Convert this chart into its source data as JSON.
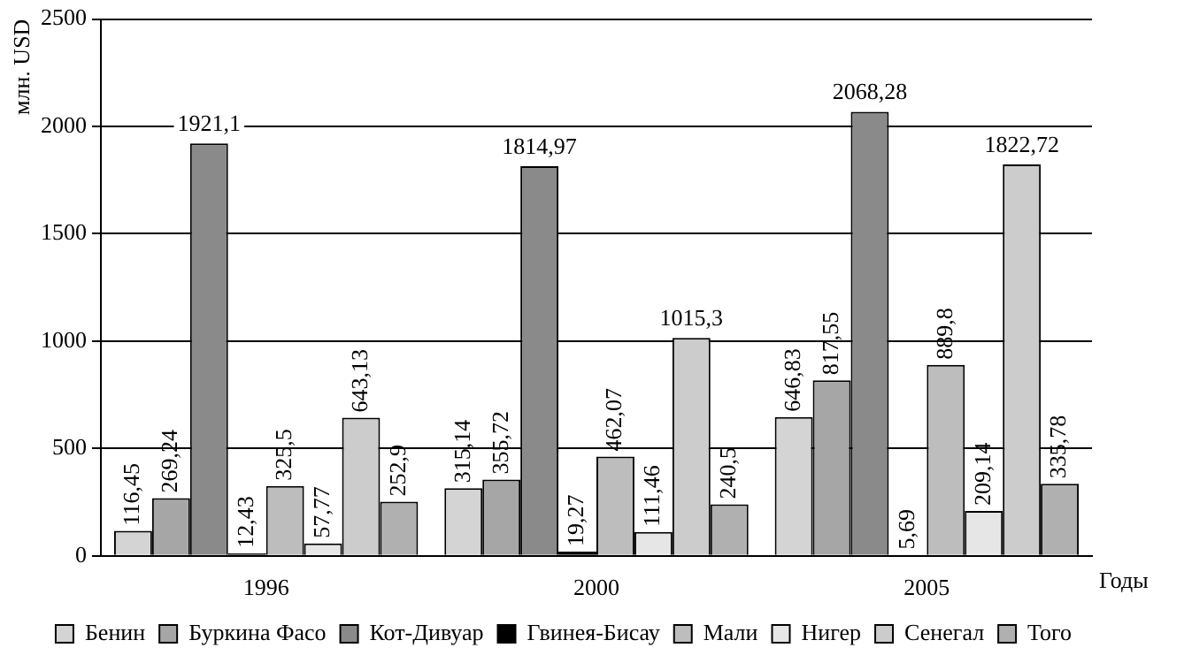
{
  "chart_data": {
    "type": "bar",
    "xlabel": "Годы",
    "ylabel": "млн. USD",
    "categories": [
      "1996",
      "2000",
      "2005"
    ],
    "series": [
      {
        "name": "Бенин",
        "color": "#d4d4d4",
        "values": [
          116.45,
          315.14,
          646.83
        ],
        "value_labels": [
          "116,45",
          "315,14",
          "646,83"
        ]
      },
      {
        "name": "Буркина Фасо",
        "color": "#a6a6a6",
        "values": [
          269.24,
          355.72,
          817.55
        ],
        "value_labels": [
          "269,24",
          "355,72",
          "817,55"
        ]
      },
      {
        "name": "Кот-Дивуар",
        "color": "#8a8a8a",
        "values": [
          1921.1,
          1814.97,
          2068.28
        ],
        "value_labels": [
          "1921,1",
          "1814,97",
          "2068,28"
        ]
      },
      {
        "name": "Гвинея-Бисау",
        "color": "#000000",
        "values": [
          12.43,
          19.27,
          5.69
        ],
        "value_labels": [
          "12,43",
          "19,27",
          "5,69"
        ]
      },
      {
        "name": "Мали",
        "color": "#bdbdbd",
        "values": [
          325.5,
          462.07,
          889.8
        ],
        "value_labels": [
          "325,5",
          "462,07",
          "889,8"
        ]
      },
      {
        "name": "Нигер",
        "color": "#e6e6e6",
        "values": [
          57.77,
          111.46,
          209.14
        ],
        "value_labels": [
          "57,77",
          "111,46",
          "209,14"
        ]
      },
      {
        "name": "Сенегал",
        "color": "#cccccc",
        "values": [
          643.13,
          1015.3,
          1822.72
        ],
        "value_labels": [
          "643,13",
          "1015,3",
          "1822,72"
        ]
      },
      {
        "name": "Того",
        "color": "#b0b0b0",
        "values": [
          252.9,
          240.5,
          335.78
        ],
        "value_labels": [
          "252,9",
          "240,5",
          "335,78"
        ]
      }
    ],
    "ylim": [
      0,
      2500
    ],
    "yticks": [
      0,
      500,
      1000,
      1500,
      2000,
      2500
    ],
    "grid": "y",
    "legend": "bottom"
  }
}
